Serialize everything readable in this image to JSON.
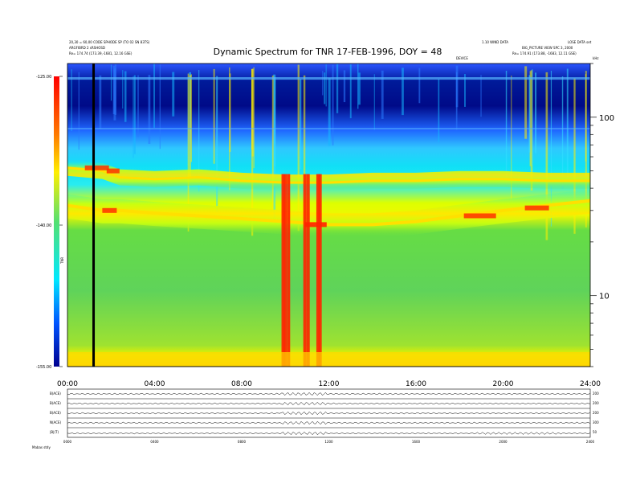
{
  "chart_data": {
    "type": "heatmap",
    "title": "Dynamic Spectrum for TNR 17-FEB-1996, DOY = 48",
    "header_left": [
      "20,30 = 60,00 CODE SPHODE SP (TO 02 SN 83TS)",
      "ARGFIBRD 2 sRSHOSD",
      "Re= 174.74 (173.39,-1681, 12.16 GSE)"
    ],
    "header_right": [
      "1.10 WIND DATA",
      "LOSE DATA set",
      "BIG_PICTURE VIEW SPC 3, 2000",
      "Re= 174.91 (173.88, -1683, 12.11 GSE)"
    ],
    "center_small_label": "DEVICE",
    "right_small_label": "kHz",
    "colorbar": {
      "label": "TNR",
      "ticks": [
        "-125.00",
        "-140.00",
        "-155.00"
      ]
    },
    "x": {
      "ticks": [
        "00:00",
        "04:00",
        "08:00",
        "12:00",
        "16:00",
        "20:00",
        "24:00"
      ],
      "range_hours": [
        0,
        24
      ]
    },
    "y_right": {
      "scale": "log",
      "ticks": [
        "100",
        "10"
      ],
      "units": "kHz",
      "range_khz": [
        4,
        200
      ]
    },
    "features": {
      "upper_band_khz": [
        [
          0,
          52
        ],
        [
          1.6,
          50
        ],
        [
          2.4,
          46
        ],
        [
          4,
          45
        ],
        [
          6,
          46
        ],
        [
          8,
          44
        ],
        [
          10,
          43
        ],
        [
          12,
          43
        ],
        [
          14,
          44
        ],
        [
          16,
          44
        ],
        [
          18,
          45
        ],
        [
          20,
          45
        ],
        [
          22,
          44
        ],
        [
          24,
          44
        ]
      ],
      "lower_band_khz": [
        [
          0,
          32
        ],
        [
          1.6,
          30
        ],
        [
          2.4,
          30
        ],
        [
          4,
          29
        ],
        [
          6,
          28
        ],
        [
          8,
          27
        ],
        [
          10,
          26
        ],
        [
          12,
          25
        ],
        [
          14,
          25
        ],
        [
          16,
          26
        ],
        [
          18,
          28
        ],
        [
          20,
          30
        ],
        [
          22,
          32
        ],
        [
          24,
          34
        ]
      ],
      "bursts_hours": [
        9.9,
        10.0,
        10.15,
        10.9,
        11.05,
        11.5,
        11.6
      ],
      "marker_hour": 1.2
    },
    "bottom_panels": {
      "labels": [
        "B(ACE)",
        "B(ACE)",
        "B(ACE)",
        "N(ACE)",
        "|B|(T)"
      ],
      "right_labels": [
        "200",
        "200",
        "200",
        "300",
        "50"
      ],
      "x_ticks": [
        "0000",
        "0400",
        "0800",
        "1200",
        "1600",
        "2000",
        "2400"
      ],
      "footer": "Mabas   stdy"
    }
  }
}
